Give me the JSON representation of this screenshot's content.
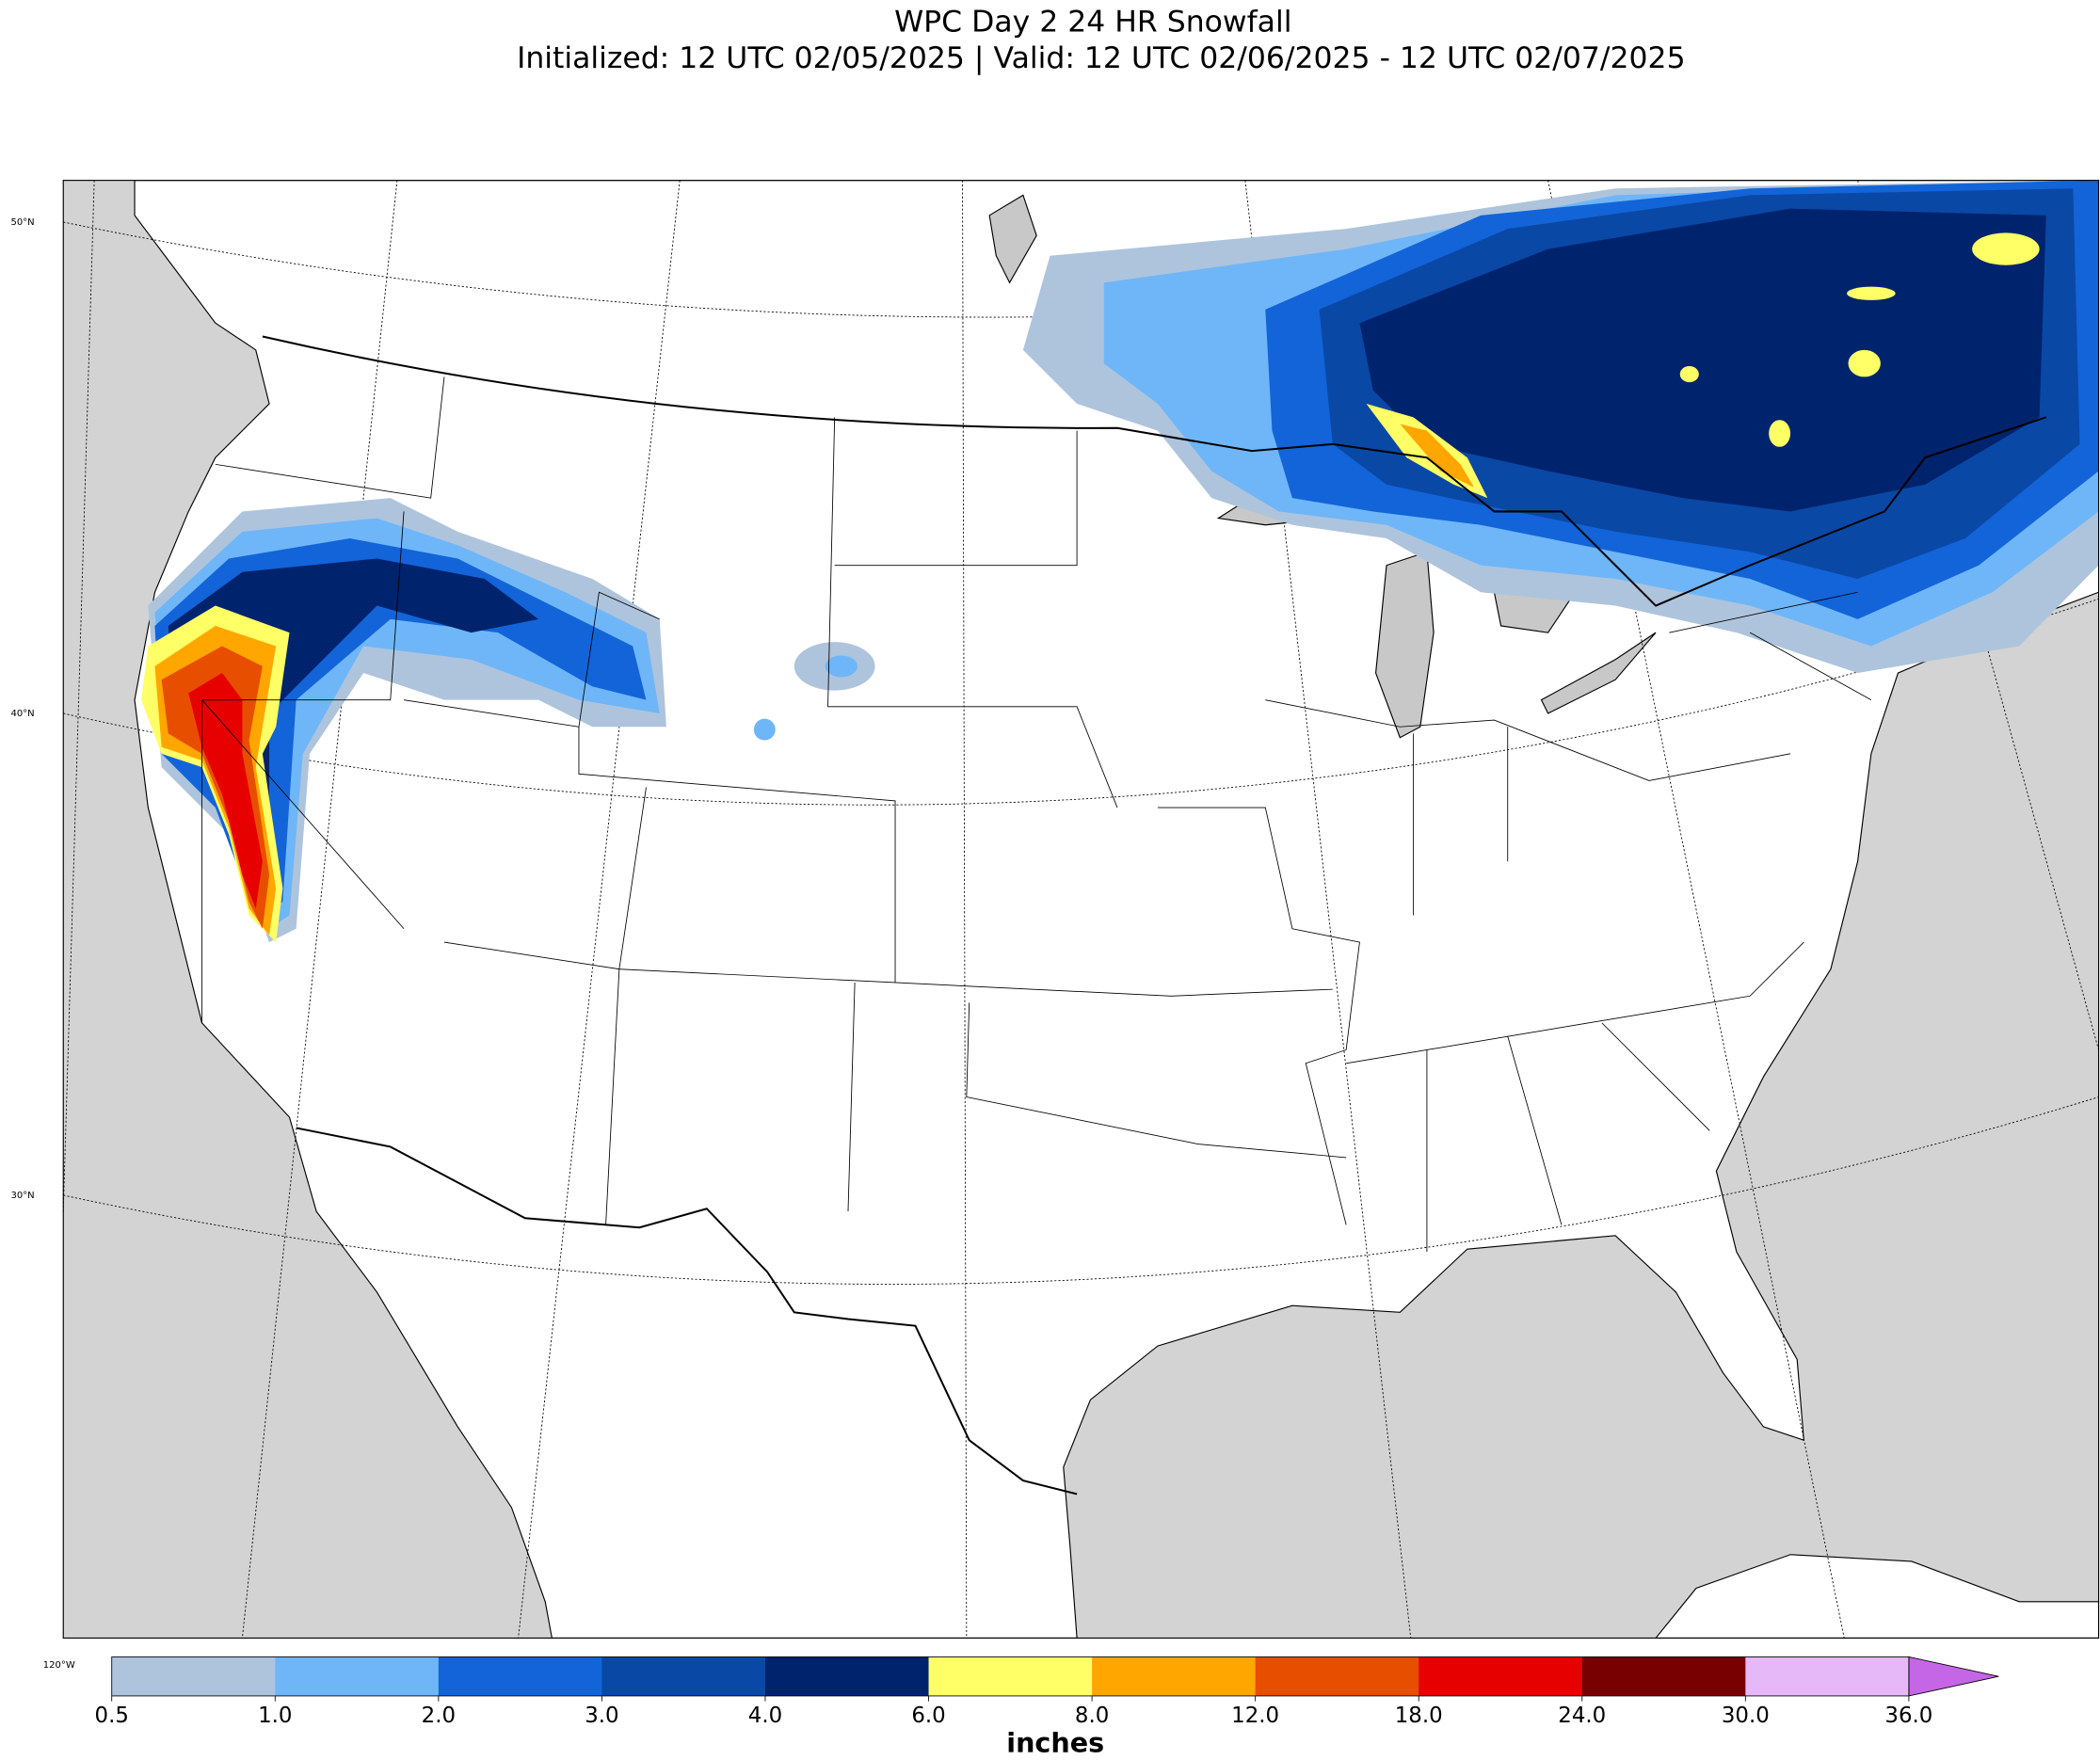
{
  "header": {
    "title": "WPC Day 2 24 HR Snowfall",
    "subtitle": "Initialized: 12 UTC 02/05/2025 | Valid: 12 UTC 02/06/2025 - 12 UTC 02/07/2025"
  },
  "map": {
    "lat_labels": [
      "50°N",
      "40°N",
      "30°N"
    ],
    "lon_label": "120°W"
  },
  "colorbar": {
    "ticks": [
      0.5,
      {
        "value": 1,
        "label": "1.0"
      },
      {
        "value": 2,
        "label": "2.0"
      },
      {
        "value": 3,
        "label": "3.0"
      },
      {
        "value": 4,
        "label": "4.0"
      },
      {
        "value": 6,
        "label": "6.0"
      },
      {
        "value": 8,
        "label": "8.0"
      },
      {
        "value": 12,
        "label": "12.0"
      },
      {
        "value": 18,
        "label": "18.0"
      },
      {
        "value": 24,
        "label": "24.0"
      },
      {
        "value": 30,
        "label": "30.0"
      },
      {
        "value": 36,
        "label": "36.0"
      }
    ],
    "colors": [
      "#aec4dc",
      "#6eb6f8",
      "#1264d8",
      "#0a48a6",
      "#00236e",
      "#ffff66",
      "#ffa600",
      "#e84e00",
      "#e60000",
      "#780000",
      "#e6b8f8",
      "#c466e6"
    ],
    "label": "inches"
  }
}
